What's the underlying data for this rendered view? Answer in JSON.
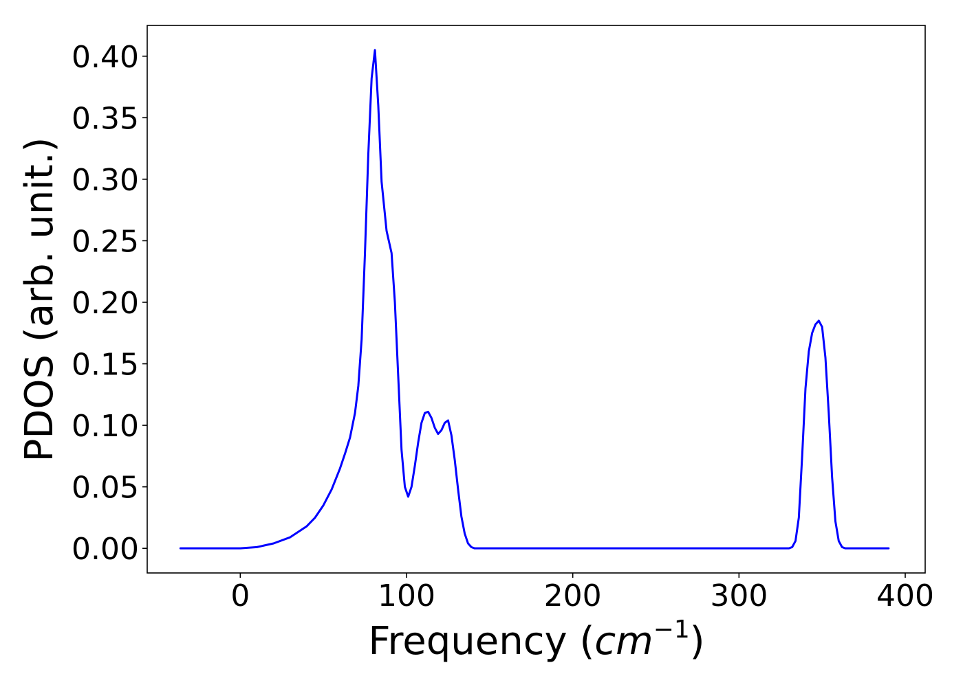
{
  "chart_data": {
    "type": "line",
    "title": "",
    "xlabel_main": "Frequency (",
    "xlabel_unit_base": "cm",
    "xlabel_unit_exp": "−1",
    "xlabel_close": ")",
    "ylabel": "PDOS (arb. unit.)",
    "xlim": [
      -56,
      412
    ],
    "ylim": [
      -0.02,
      0.425
    ],
    "xticks": [
      0,
      100,
      200,
      300,
      400
    ],
    "xtick_labels": [
      "0",
      "100",
      "200",
      "300",
      "400"
    ],
    "yticks": [
      0.0,
      0.05,
      0.1,
      0.15,
      0.2,
      0.25,
      0.3,
      0.35,
      0.4
    ],
    "ytick_labels": [
      "0.00",
      "0.05",
      "0.10",
      "0.15",
      "0.20",
      "0.25",
      "0.30",
      "0.35",
      "0.40"
    ],
    "grid": false,
    "legend": "none",
    "series": [
      {
        "color": "#0000ff",
        "x": [
          -36,
          -20,
          0,
          10,
          20,
          30,
          40,
          45,
          50,
          55,
          60,
          63,
          66,
          69,
          71,
          73,
          75,
          77,
          79,
          81,
          83,
          85,
          88,
          91,
          93,
          95,
          97,
          99,
          101,
          103,
          105,
          107,
          109,
          111,
          113,
          115,
          117,
          119,
          121,
          123,
          125,
          127,
          129,
          131,
          133,
          135,
          137,
          139,
          141,
          143,
          145,
          150,
          200,
          250,
          300,
          330,
          332,
          334,
          336,
          338,
          340,
          342,
          344,
          346,
          348,
          350,
          352,
          354,
          356,
          358,
          360,
          362,
          364,
          366,
          370,
          390
        ],
        "y": [
          0.0,
          0.0,
          0.0,
          0.001,
          0.004,
          0.009,
          0.018,
          0.025,
          0.035,
          0.048,
          0.065,
          0.077,
          0.09,
          0.11,
          0.132,
          0.17,
          0.24,
          0.32,
          0.382,
          0.405,
          0.36,
          0.298,
          0.258,
          0.24,
          0.2,
          0.14,
          0.08,
          0.05,
          0.042,
          0.05,
          0.067,
          0.086,
          0.102,
          0.11,
          0.111,
          0.106,
          0.098,
          0.093,
          0.096,
          0.102,
          0.104,
          0.092,
          0.072,
          0.048,
          0.026,
          0.012,
          0.004,
          0.001,
          0.0,
          0.0,
          0.0,
          0.0,
          0.0,
          0.0,
          0.0,
          0.0,
          0.001,
          0.006,
          0.025,
          0.075,
          0.13,
          0.16,
          0.175,
          0.182,
          0.185,
          0.18,
          0.155,
          0.11,
          0.058,
          0.022,
          0.006,
          0.001,
          0.0,
          0.0,
          0.0,
          0.0
        ]
      }
    ]
  }
}
